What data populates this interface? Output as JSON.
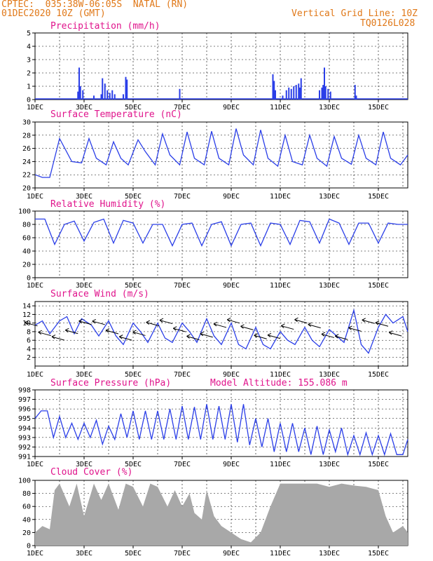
{
  "header": {
    "station": "CPTEC:  035:38W-06:05S  NATAL (RN)",
    "date": "01DEC2020 10Z (GMT)",
    "grid_line": "Vertical Grid Line: 10Z",
    "code": "TQ0126L028"
  },
  "colors": {
    "header": "#e07818",
    "title": "#e0148c",
    "line": "#2a3ee8",
    "bar": "#2a3ee8",
    "cloud": "#a8a8a8"
  },
  "x_labels": [
    "1DEC",
    "3DEC",
    "5DEC",
    "7DEC",
    "9DEC",
    "11DEC",
    "13DEC",
    "15DEC"
  ],
  "chart_data": [
    {
      "id": "precip",
      "type": "bar",
      "title": "Precipitation (mm/h)",
      "x_range_days": [
        1,
        16.2
      ],
      "ylim": [
        0,
        5
      ],
      "yticks": [
        "0",
        "1",
        "2",
        "3",
        "4",
        "5"
      ],
      "bars": [
        [
          2.75,
          0.6
        ],
        [
          2.8,
          2.4
        ],
        [
          2.85,
          1.0
        ],
        [
          2.95,
          0.7
        ],
        [
          3.4,
          0.3
        ],
        [
          3.7,
          0.4
        ],
        [
          3.75,
          1.6
        ],
        [
          3.85,
          1.2
        ],
        [
          3.95,
          0.7
        ],
        [
          4.05,
          0.5
        ],
        [
          4.15,
          0.7
        ],
        [
          4.25,
          0.4
        ],
        [
          4.6,
          0.4
        ],
        [
          4.7,
          1.7
        ],
        [
          4.75,
          1.5
        ],
        [
          6.9,
          0.8
        ],
        [
          10.7,
          1.9
        ],
        [
          10.75,
          1.4
        ],
        [
          10.8,
          0.7
        ],
        [
          11.1,
          0.3
        ],
        [
          11.25,
          0.7
        ],
        [
          11.35,
          0.9
        ],
        [
          11.45,
          0.8
        ],
        [
          11.55,
          1.0
        ],
        [
          11.65,
          1.1
        ],
        [
          11.75,
          1.2
        ],
        [
          11.8,
          0.9
        ],
        [
          11.85,
          1.6
        ],
        [
          12.6,
          0.7
        ],
        [
          12.7,
          0.9
        ],
        [
          12.75,
          1.1
        ],
        [
          12.8,
          2.4
        ],
        [
          12.85,
          1.0
        ],
        [
          12.95,
          0.8
        ],
        [
          13.05,
          0.6
        ],
        [
          14.05,
          1.1
        ],
        [
          14.1,
          0.3
        ]
      ]
    },
    {
      "id": "temp",
      "type": "line",
      "title": "Surface Temperature (nC)",
      "x_range_days": [
        1,
        16.2
      ],
      "ylim": [
        20,
        30
      ],
      "yticks": [
        "20",
        "22",
        "24",
        "26",
        "28",
        "30"
      ],
      "x": [
        1.0,
        1.3,
        1.6,
        2.0,
        2.5,
        2.9,
        3.2,
        3.5,
        3.9,
        4.2,
        4.5,
        4.8,
        5.2,
        5.5,
        5.9,
        6.2,
        6.5,
        6.9,
        7.2,
        7.5,
        7.9,
        8.2,
        8.5,
        8.9,
        9.2,
        9.5,
        9.9,
        10.2,
        10.5,
        10.9,
        11.2,
        11.5,
        11.9,
        12.2,
        12.5,
        12.9,
        13.2,
        13.5,
        13.9,
        14.2,
        14.5,
        14.9,
        15.2,
        15.5,
        15.9,
        16.2
      ],
      "y": [
        22.0,
        21.6,
        21.6,
        27.5,
        24.0,
        23.8,
        27.5,
        24.5,
        23.5,
        27.0,
        24.5,
        23.5,
        27.3,
        25.5,
        23.5,
        28.2,
        25.0,
        23.5,
        28.5,
        24.5,
        23.5,
        28.6,
        24.5,
        23.5,
        29.0,
        25.0,
        23.5,
        28.8,
        24.5,
        23.3,
        28.0,
        24.0,
        23.5,
        28.0,
        24.5,
        23.3,
        27.8,
        24.5,
        23.6,
        28.0,
        24.5,
        23.5,
        28.5,
        24.5,
        23.5,
        25.0
      ]
    },
    {
      "id": "rh",
      "type": "line",
      "title": "Relative Humidity (%)",
      "x_range_days": [
        1,
        16.2
      ],
      "ylim": [
        0,
        100
      ],
      "yticks": [
        "0",
        "20",
        "40",
        "60",
        "80",
        "100"
      ],
      "x": [
        1.0,
        1.4,
        1.8,
        2.2,
        2.6,
        3.0,
        3.4,
        3.8,
        4.2,
        4.6,
        5.0,
        5.4,
        5.8,
        6.2,
        6.6,
        7.0,
        7.4,
        7.8,
        8.2,
        8.6,
        9.0,
        9.4,
        9.8,
        10.2,
        10.6,
        11.0,
        11.4,
        11.8,
        12.2,
        12.6,
        13.0,
        13.4,
        13.8,
        14.2,
        14.6,
        15.0,
        15.4,
        15.8,
        16.2
      ],
      "y": [
        88,
        88,
        50,
        80,
        85,
        55,
        83,
        88,
        52,
        86,
        82,
        52,
        80,
        80,
        48,
        80,
        82,
        48,
        80,
        84,
        48,
        80,
        82,
        48,
        82,
        80,
        50,
        86,
        84,
        52,
        88,
        82,
        50,
        82,
        82,
        52,
        82,
        80,
        80
      ]
    },
    {
      "id": "wind",
      "type": "line",
      "title": "Surface Wind (m/s)",
      "x_range_days": [
        1,
        16.2
      ],
      "ylim": [
        0,
        15
      ],
      "yticks": [
        "2",
        "4",
        "6",
        "8",
        "10",
        "12",
        "14"
      ],
      "x": [
        1.0,
        1.3,
        1.6,
        2.0,
        2.3,
        2.6,
        2.9,
        3.3,
        3.6,
        4.0,
        4.3,
        4.6,
        5.0,
        5.3,
        5.6,
        6.0,
        6.3,
        6.6,
        7.0,
        7.3,
        7.6,
        8.0,
        8.3,
        8.6,
        9.0,
        9.3,
        9.6,
        10.0,
        10.3,
        10.6,
        11.0,
        11.3,
        11.6,
        12.0,
        12.3,
        12.6,
        13.0,
        13.3,
        13.6,
        14.0,
        14.3,
        14.6,
        15.0,
        15.3,
        15.6,
        16.0,
        16.2
      ],
      "y": [
        9.5,
        10.5,
        7.5,
        10.5,
        11.5,
        7.5,
        11,
        9.5,
        7,
        10.5,
        7,
        5,
        10,
        8,
        5.5,
        10,
        6.5,
        5.5,
        10,
        8,
        5.5,
        11,
        7,
        5,
        10,
        5,
        4,
        9,
        5,
        4,
        8,
        6,
        5,
        9,
        6,
        4.5,
        8.5,
        7,
        5.5,
        13,
        5,
        3,
        9,
        12,
        10,
        11.5,
        8
      ]
    },
    {
      "id": "pressure",
      "type": "line",
      "title": "Surface Pressure (hPa)",
      "annotation": "Model Altitude: 155.086 m",
      "x_range_days": [
        1,
        16.2
      ],
      "ylim": [
        991,
        998
      ],
      "yticks": [
        "991",
        "992",
        "993",
        "994",
        "995",
        "996",
        "997",
        "998"
      ],
      "x": [
        1.0,
        1.25,
        1.5,
        1.75,
        2.0,
        2.25,
        2.5,
        2.75,
        3.0,
        3.25,
        3.5,
        3.75,
        4.0,
        4.25,
        4.5,
        4.75,
        5.0,
        5.25,
        5.5,
        5.75,
        6.0,
        6.25,
        6.5,
        6.75,
        7.0,
        7.25,
        7.5,
        7.75,
        8.0,
        8.25,
        8.5,
        8.75,
        9.0,
        9.25,
        9.5,
        9.75,
        10.0,
        10.25,
        10.5,
        10.75,
        11.0,
        11.25,
        11.5,
        11.75,
        12.0,
        12.25,
        12.5,
        12.75,
        13.0,
        13.25,
        13.5,
        13.75,
        14.0,
        14.25,
        14.5,
        14.75,
        15.0,
        15.25,
        15.5,
        15.75,
        16.0,
        16.2
      ],
      "y": [
        995,
        995.8,
        995.8,
        993,
        995.2,
        993,
        994.5,
        992.8,
        994.5,
        993,
        994.8,
        992.3,
        994.2,
        992.8,
        995.5,
        993,
        995.8,
        992.8,
        995.8,
        992.8,
        995.8,
        992.8,
        996,
        992.8,
        996.3,
        992.8,
        996.2,
        992.8,
        996.5,
        992.8,
        996.3,
        992.8,
        996.5,
        992.5,
        996.5,
        992.2,
        995,
        992,
        995,
        991.5,
        994.5,
        991.5,
        994.5,
        991.5,
        994,
        991.2,
        994.2,
        991.2,
        993.8,
        991.5,
        994,
        991.2,
        993.2,
        991.2,
        993.5,
        991.2,
        993.2,
        991.2,
        993.4,
        991.2,
        991.2,
        992.8
      ]
    },
    {
      "id": "cloud",
      "type": "area",
      "title": "Cloud Cover (%)",
      "x_range_days": [
        1,
        16.2
      ],
      "ylim": [
        0,
        100
      ],
      "yticks": [
        "0",
        "20",
        "40",
        "60",
        "80",
        "100"
      ],
      "x": [
        1.0,
        1.3,
        1.6,
        1.8,
        2.0,
        2.4,
        2.7,
        3.0,
        3.4,
        3.7,
        4.0,
        4.4,
        4.7,
        5.0,
        5.4,
        5.7,
        6.0,
        6.4,
        6.7,
        7.0,
        7.3,
        7.5,
        7.8,
        8.0,
        8.3,
        8.6,
        9.0,
        9.4,
        9.8,
        10.2,
        10.6,
        11.0,
        11.5,
        12.0,
        12.5,
        13.0,
        13.5,
        14.0,
        14.5,
        15.0,
        15.3,
        15.6,
        16.0,
        16.2
      ],
      "y": [
        20,
        30,
        25,
        85,
        95,
        60,
        95,
        45,
        95,
        70,
        95,
        55,
        95,
        90,
        60,
        95,
        90,
        60,
        85,
        60,
        80,
        50,
        40,
        85,
        45,
        30,
        20,
        10,
        5,
        20,
        60,
        95,
        95,
        95,
        95,
        90,
        95,
        92,
        90,
        85,
        45,
        20,
        30,
        20
      ]
    }
  ]
}
